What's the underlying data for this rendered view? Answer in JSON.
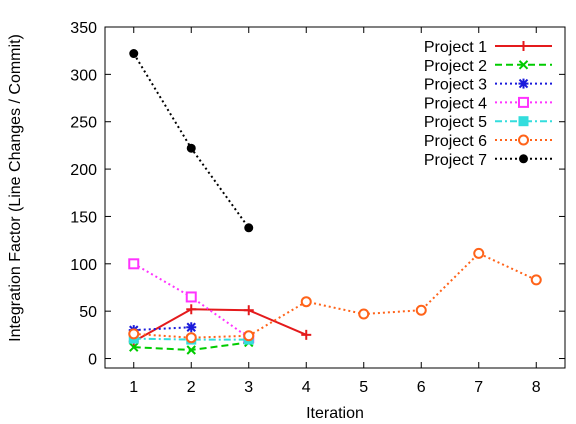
{
  "chart_data": {
    "type": "line",
    "xlabel": "Iteration",
    "ylabel": "Integration Factor (Line Changes / Commit)",
    "xlim": [
      0.5,
      8.5
    ],
    "ylim": [
      -10,
      350
    ],
    "xticks": [
      1,
      2,
      3,
      4,
      5,
      6,
      7,
      8
    ],
    "yticks": [
      0,
      50,
      100,
      150,
      200,
      250,
      300,
      350
    ],
    "grid": false,
    "legend_position": "top-right",
    "series": [
      {
        "name": "Project 1",
        "color": "#e41a1c",
        "dash": "solid",
        "marker": "plus",
        "x": [
          1,
          2,
          3,
          4
        ],
        "y": [
          18,
          52,
          51,
          25
        ]
      },
      {
        "name": "Project 2",
        "color": "#00cc00",
        "dash": "dashed",
        "marker": "x",
        "x": [
          1,
          2,
          3
        ],
        "y": [
          12,
          9,
          17
        ]
      },
      {
        "name": "Project 3",
        "color": "#1a1adb",
        "dash": "dotted",
        "marker": "star",
        "x": [
          1,
          2
        ],
        "y": [
          30,
          33
        ]
      },
      {
        "name": "Project 4",
        "color": "#ff33ff",
        "dash": "dotted",
        "marker": "square-open",
        "x": [
          1,
          2,
          3
        ],
        "y": [
          100,
          65,
          22
        ]
      },
      {
        "name": "Project 5",
        "color": "#33dddd",
        "dash": "dashdot",
        "marker": "square-filled",
        "x": [
          1,
          2,
          3
        ],
        "y": [
          21,
          20,
          20
        ]
      },
      {
        "name": "Project 6",
        "color": "#ff6319",
        "dash": "dotted",
        "marker": "circle-open",
        "x": [
          1,
          2,
          3,
          4,
          5,
          6,
          7,
          8
        ],
        "y": [
          26,
          22,
          24,
          60,
          47,
          51,
          111,
          83
        ]
      },
      {
        "name": "Project 7",
        "color": "#000000",
        "dash": "dotted",
        "marker": "circle-filled",
        "x": [
          1,
          2,
          3
        ],
        "y": [
          322,
          222,
          138
        ]
      }
    ]
  }
}
